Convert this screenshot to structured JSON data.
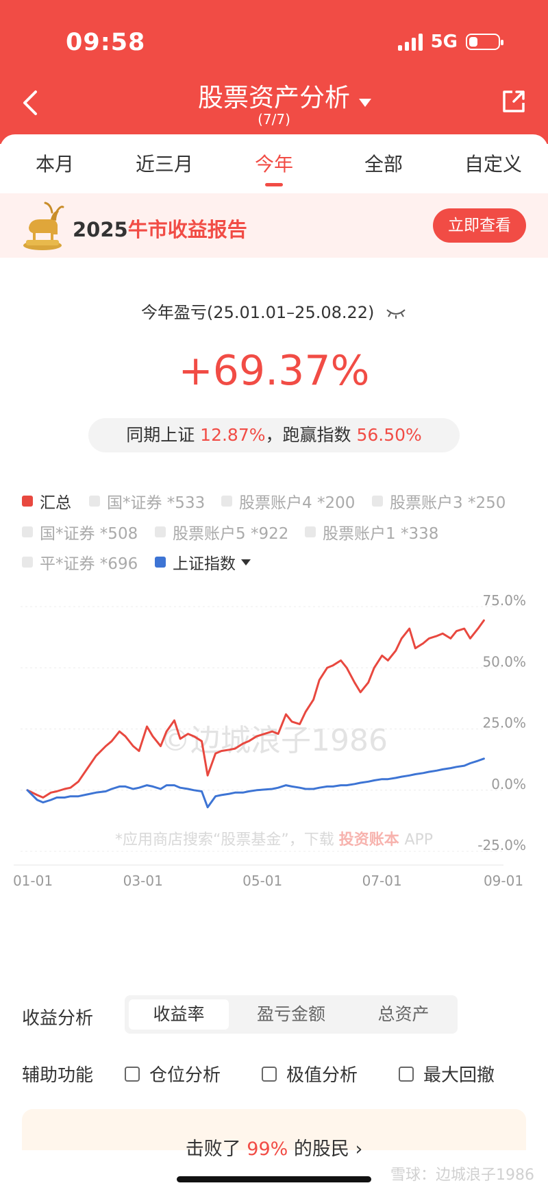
{
  "status": {
    "time": "09:58",
    "network": "5G"
  },
  "header": {
    "title": "股票资产分析",
    "subtitle": "(7/7)"
  },
  "tabs": [
    "本月",
    "近三月",
    "今年",
    "全部",
    "自定义"
  ],
  "active_tab": "今年",
  "banner": {
    "year": "2025",
    "highlight": "牛市收益报告",
    "button": "立即查看"
  },
  "summary": {
    "label": "今年盈亏(25.01.01–25.08.22)",
    "value": "+69.37%",
    "compare_prefix": "同期上证",
    "index_return": "12.87%",
    "compare_mid": "，跑赢指数",
    "excess_return": "56.50%"
  },
  "legend": {
    "total": "汇总",
    "accounts": [
      "国*证券 *533",
      "股票账户4 *200",
      "股票账户3 *250",
      "国*证券 *508",
      "股票账户5 *922",
      "股票账户1 *338",
      "平*证券 *696"
    ],
    "index": "上证指数"
  },
  "colors": {
    "brand": "#f14c45",
    "series_total": "#e8483f",
    "series_index": "#3d74d4"
  },
  "chart_data": {
    "type": "line",
    "x_ticks": [
      "01-01",
      "03-01",
      "05-01",
      "07-01",
      "09-01"
    ],
    "y_ticks": [
      "75.0%",
      "50.0%",
      "25.0%",
      "0.0%",
      "-25.0%"
    ],
    "ylim": [
      -25,
      75
    ],
    "x_range": [
      "01-01",
      "09-01"
    ],
    "grid": true,
    "watermark": "©边城浪子1986",
    "footnote": {
      "text": "*应用商店搜索“股票基金”，下载",
      "brand": "投资账本",
      "suffix": "APP"
    },
    "series": [
      {
        "name": "汇总",
        "color": "#e8483f",
        "x": [
          "01-01",
          "01-06",
          "01-09",
          "01-13",
          "01-16",
          "01-20",
          "01-23",
          "01-27",
          "02-05",
          "02-10",
          "02-13",
          "02-17",
          "02-20",
          "02-24",
          "02-27",
          "03-03",
          "03-06",
          "03-10",
          "03-13",
          "03-17",
          "03-20",
          "03-24",
          "03-27",
          "03-31",
          "04-03",
          "04-07",
          "04-10",
          "04-14",
          "04-17",
          "04-21",
          "04-24",
          "04-28",
          "05-06",
          "05-09",
          "05-13",
          "05-16",
          "05-20",
          "05-23",
          "05-27",
          "05-30",
          "06-03",
          "06-06",
          "06-10",
          "06-13",
          "06-17",
          "06-20",
          "06-24",
          "06-27",
          "07-01",
          "07-04",
          "07-08",
          "07-11",
          "07-15",
          "07-18",
          "07-22",
          "07-25",
          "07-29",
          "08-01",
          "08-05",
          "08-08",
          "08-12",
          "08-15",
          "08-19",
          "08-22"
        ],
        "y": [
          0.0,
          -2.0,
          -3.0,
          -1.0,
          -0.5,
          0.5,
          1.0,
          3.5,
          14.0,
          18.0,
          20.0,
          24.0,
          22.0,
          18.0,
          16.0,
          26.0,
          22.0,
          18.0,
          24.0,
          28.5,
          21.0,
          23.0,
          22.0,
          20.0,
          6.0,
          15.0,
          16.0,
          16.5,
          17.0,
          19.0,
          20.0,
          22.0,
          24.0,
          23.0,
          31.0,
          28.0,
          27.0,
          32.0,
          37.0,
          45.0,
          50.0,
          51.0,
          53.0,
          50.0,
          44.0,
          40.0,
          44.0,
          50.0,
          55.0,
          53.0,
          57.0,
          62.0,
          66.0,
          58.0,
          60.0,
          62.0,
          63.0,
          64.0,
          62.0,
          65.0,
          66.0,
          62.0,
          66.0,
          69.37
        ]
      },
      {
        "name": "上证指数",
        "color": "#3d74d4",
        "x": [
          "01-01",
          "01-06",
          "01-09",
          "01-13",
          "01-16",
          "01-20",
          "01-23",
          "01-27",
          "02-05",
          "02-10",
          "02-13",
          "02-17",
          "02-20",
          "02-24",
          "02-27",
          "03-03",
          "03-06",
          "03-10",
          "03-13",
          "03-17",
          "03-20",
          "03-24",
          "03-27",
          "03-31",
          "04-03",
          "04-07",
          "04-10",
          "04-14",
          "04-17",
          "04-21",
          "04-24",
          "04-28",
          "05-06",
          "05-09",
          "05-13",
          "05-16",
          "05-20",
          "05-23",
          "05-27",
          "05-30",
          "06-03",
          "06-06",
          "06-10",
          "06-13",
          "06-17",
          "06-20",
          "06-24",
          "06-27",
          "07-01",
          "07-04",
          "07-08",
          "07-11",
          "07-15",
          "07-18",
          "07-22",
          "07-25",
          "07-29",
          "08-01",
          "08-05",
          "08-08",
          "08-12",
          "08-15",
          "08-19",
          "08-22"
        ],
        "y": [
          0.0,
          -4.0,
          -5.0,
          -4.0,
          -3.0,
          -3.0,
          -2.5,
          -2.5,
          -1.0,
          -0.5,
          0.5,
          1.5,
          1.5,
          0.5,
          1.0,
          2.0,
          1.5,
          0.5,
          2.0,
          2.0,
          1.0,
          0.5,
          0.0,
          -0.5,
          -7.0,
          -2.5,
          -2.0,
          -1.5,
          -1.0,
          -1.0,
          -0.5,
          0.0,
          0.5,
          1.0,
          2.0,
          1.5,
          1.0,
          0.5,
          0.5,
          1.0,
          1.5,
          1.5,
          2.0,
          2.0,
          2.5,
          3.0,
          3.5,
          4.0,
          4.5,
          4.5,
          5.0,
          5.5,
          6.0,
          6.5,
          7.0,
          7.5,
          8.0,
          8.5,
          9.0,
          9.5,
          10.0,
          11.0,
          12.0,
          12.87
        ]
      }
    ]
  },
  "analysis": {
    "label": "收益分析",
    "options": [
      "收益率",
      "盈亏金额",
      "总资产"
    ],
    "active": "收益率"
  },
  "aux": {
    "label": "辅助功能",
    "options": [
      "仓位分析",
      "极值分析",
      "最大回撤"
    ]
  },
  "footer": {
    "prefix": "击败了",
    "percent": "99%",
    "suffix": "的股民",
    "arrow": "›"
  },
  "watermark_bottom": "雪球：边城浪子1986"
}
